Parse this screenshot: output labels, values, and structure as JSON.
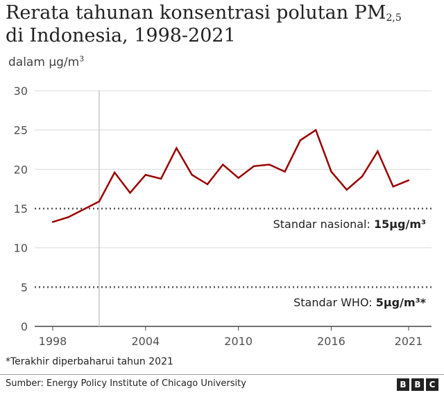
{
  "header": {
    "title_line1": "Rerata tahunan konsentrasi polutan PM",
    "title_sub": "2,5",
    "title_line2": "di Indonesia, 1998-2021",
    "subtitle_text": "dalam µg/m",
    "subtitle_sup": "3"
  },
  "chart_data": {
    "type": "line",
    "title": "Rerata tahunan konsentrasi polutan PM2,5 di Indonesia, 1998-2021",
    "subtitle": "dalam µg/m³",
    "xlabel": "",
    "ylabel": "",
    "xlim": [
      1998,
      2021
    ],
    "ylim": [
      0,
      30
    ],
    "x_ticks": [
      1998,
      2004,
      2010,
      2016,
      2021
    ],
    "y_ticks": [
      0,
      5,
      10,
      15,
      20,
      25,
      30
    ],
    "grid": true,
    "line_color": "#990000",
    "series": [
      {
        "x": [
          1998,
          1999,
          2000,
          2001,
          2002,
          2003,
          2004,
          2005,
          2006,
          2007,
          2008,
          2009,
          2010,
          2011,
          2012,
          2013,
          2014,
          2015,
          2016,
          2017,
          2018,
          2019,
          2020,
          2021
        ],
        "values": [
          13.3,
          13.9,
          14.9,
          15.9,
          19.6,
          17.0,
          19.3,
          18.8,
          22.7,
          19.3,
          18.1,
          20.6,
          18.9,
          20.4,
          20.6,
          19.7,
          23.7,
          25.0,
          19.7,
          17.4,
          19.1,
          22.3,
          17.8,
          18.6
        ]
      }
    ],
    "reference_lines": [
      {
        "value": 15,
        "label": "Standar nasional: ",
        "label_value": "15µg/m³"
      },
      {
        "value": 5,
        "label": "Standar WHO: ",
        "label_value": "5µg/m³*"
      }
    ]
  },
  "footnote": "*Terakhir diperbaharui tahun 2021",
  "source": "Sumber: Energy Policy Institute of Chicago University",
  "logo": [
    "B",
    "B",
    "C"
  ]
}
